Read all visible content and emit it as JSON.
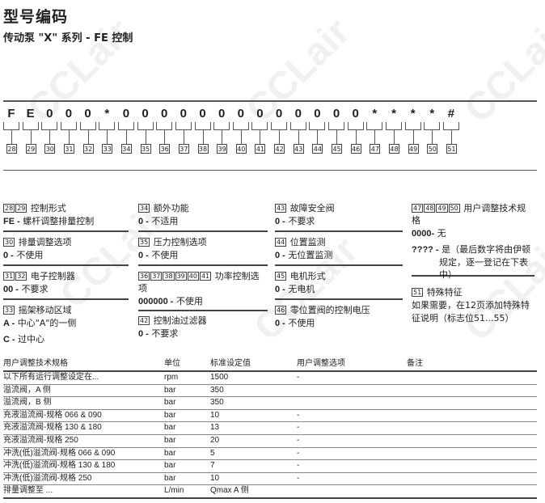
{
  "title": "型号编码",
  "subtitle": "传动泵 \"X\" 系列 - FE 控制",
  "watermark": "CCLair",
  "code": [
    "F",
    "E",
    "0",
    "0",
    "0",
    "*",
    "0",
    "0",
    "0",
    "0",
    "0",
    "0",
    "0",
    "0",
    "0",
    "0",
    "0",
    "0",
    "0",
    "*",
    "*",
    "*",
    "*",
    "#"
  ],
  "positions": [
    "28",
    "29",
    "30",
    "31",
    "32",
    "33",
    "34",
    "35",
    "36",
    "37",
    "38",
    "39",
    "40",
    "41",
    "42",
    "43",
    "44",
    "45",
    "46",
    "47",
    "48",
    "49",
    "50",
    "51"
  ],
  "sections": [
    {
      "boxes": [
        "28",
        "29"
      ],
      "label": "控制形式",
      "options": [
        {
          "code": "FE -",
          "text": "螺杆调整排量控制"
        }
      ]
    },
    {
      "boxes": [
        "30"
      ],
      "label": "排量调整选项",
      "options": [
        {
          "code": "0 -",
          "text": "不使用"
        }
      ]
    },
    {
      "boxes": [
        "31",
        "32"
      ],
      "label": "电子控制器",
      "options": [
        {
          "code": "00 -",
          "text": "不要求"
        }
      ]
    },
    {
      "boxes": [
        "33"
      ],
      "label": "摇架移动区域",
      "options": [
        {
          "code": "A -",
          "text": "中心\"A\"的一侧"
        },
        {
          "code": "C -",
          "text": "过中心"
        }
      ]
    },
    {
      "boxes": [
        "34"
      ],
      "label": "额外功能",
      "options": [
        {
          "code": "0 -",
          "text": "不适用"
        }
      ]
    },
    {
      "boxes": [
        "35"
      ],
      "label": "压力控制选项",
      "options": [
        {
          "code": "0 -",
          "text": "不使用"
        }
      ]
    },
    {
      "boxes": [
        "36",
        "37",
        "38",
        "39",
        "40",
        "41"
      ],
      "label": "功率控制选项",
      "options": [
        {
          "code": "000000 -",
          "text": "不使用"
        }
      ]
    },
    {
      "boxes": [
        "42"
      ],
      "label": "控制油过滤器",
      "options": [
        {
          "code": "0 -",
          "text": "不要求"
        }
      ]
    },
    {
      "boxes": [
        "43"
      ],
      "label": "故障安全阀",
      "options": [
        {
          "code": "0 -",
          "text": "不要求"
        }
      ]
    },
    {
      "boxes": [
        "44"
      ],
      "label": "位置监测",
      "options": [
        {
          "code": "0 -",
          "text": "无位置监测"
        }
      ]
    },
    {
      "boxes": [
        "45"
      ],
      "label": "电机形式",
      "options": [
        {
          "code": "0 -",
          "text": "无电机"
        }
      ]
    },
    {
      "boxes": [
        "46"
      ],
      "label": "零位置阀的控制电压",
      "options": [
        {
          "code": "0 -",
          "text": "不使用"
        }
      ]
    },
    {
      "boxes": [
        "47",
        "48",
        "49",
        "50"
      ],
      "label": "用户调整技术规格",
      "options": [
        {
          "code": "0000-",
          "text": "无"
        },
        {
          "code": "???? -",
          "text": "是（最后数字将由伊顿规定，逐一登记在下表中）"
        }
      ]
    },
    {
      "boxes": [
        "51"
      ],
      "label": "特殊特征",
      "options": [
        {
          "code": "",
          "text": "如果需要，在12页添加特殊特征说明（标志位51...55）"
        }
      ]
    }
  ],
  "table": {
    "headers": [
      "用户调整技术规格",
      "单位",
      "标准设定值",
      "用户调整选项",
      "备注"
    ],
    "rows": [
      [
        "以下所有运行调整设定在...",
        "rpm",
        "1500",
        "-",
        ""
      ],
      [
        "溢流阀，A 侧",
        "bar",
        "350",
        "",
        ""
      ],
      [
        "溢流阀，B 侧",
        "bar",
        "350",
        "",
        ""
      ],
      [
        "充液溢流阀-规格  066 & 090",
        "bar",
        "10",
        "-",
        ""
      ],
      [
        "充液溢流阀-规格  130 & 180",
        "bar",
        "13",
        "-",
        ""
      ],
      [
        "充液溢流阀-规格  250",
        "bar",
        "20",
        "-",
        ""
      ],
      [
        "冲洗(低)溢流阀-规格  066 & 090",
        "bar",
        "5",
        "-",
        ""
      ],
      [
        "冲洗(低)溢流阀-规格  130 & 180",
        "bar",
        "7",
        "-",
        ""
      ],
      [
        "冲洗(低)溢流阀-规格  250",
        "bar",
        "10",
        "-",
        ""
      ],
      [
        "排量调整至 ...",
        "L/min",
        "Qmax A 侧",
        "",
        ""
      ]
    ]
  }
}
